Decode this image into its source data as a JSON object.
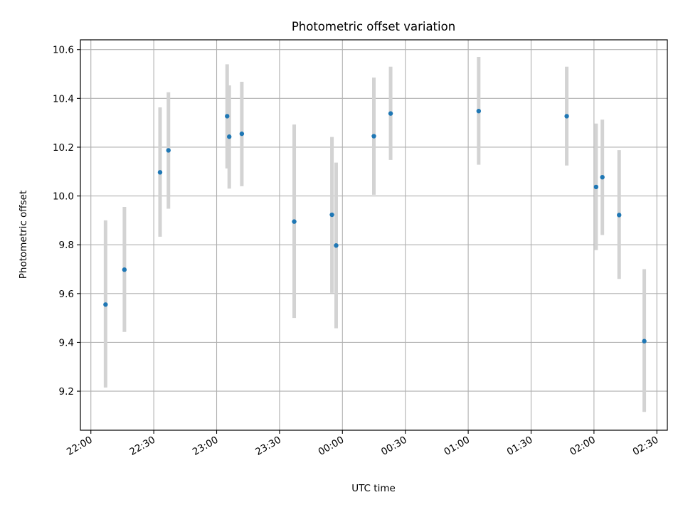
{
  "chart_data": {
    "type": "scatter",
    "title": "Photometric offset variation",
    "xlabel": "UTC time",
    "ylabel": "Photometric offset",
    "grid": true,
    "x_axis": {
      "kind": "time",
      "range": [
        "21:55",
        "02:35"
      ],
      "ticks": [
        "22:00",
        "22:30",
        "23:00",
        "23:30",
        "00:00",
        "00:30",
        "01:00",
        "01:30",
        "02:00",
        "02:30"
      ]
    },
    "y_axis": {
      "range": [
        9.04,
        10.64
      ],
      "ticks": [
        "9.2",
        "9.4",
        "9.6",
        "9.8",
        "10.0",
        "10.2",
        "10.4",
        "10.6"
      ]
    },
    "colors": {
      "point": "#1f77b4",
      "errorbar": "#d3d3d3",
      "grid": "#b0b0b0"
    },
    "series": [
      {
        "points": [
          {
            "x": "22:07",
            "y": 9.555,
            "ylow": 9.215,
            "yhigh": 9.9
          },
          {
            "x": "22:16",
            "y": 9.698,
            "ylow": 9.443,
            "yhigh": 9.955
          },
          {
            "x": "22:33",
            "y": 10.097,
            "ylow": 9.833,
            "yhigh": 10.363
          },
          {
            "x": "22:37",
            "y": 10.187,
            "ylow": 9.948,
            "yhigh": 10.425
          },
          {
            "x": "23:05",
            "y": 10.327,
            "ylow": 10.113,
            "yhigh": 10.54
          },
          {
            "x": "23:06",
            "y": 10.243,
            "ylow": 10.03,
            "yhigh": 10.453
          },
          {
            "x": "23:12",
            "y": 10.255,
            "ylow": 10.04,
            "yhigh": 10.468
          },
          {
            "x": "23:37",
            "y": 9.895,
            "ylow": 9.5,
            "yhigh": 10.293
          },
          {
            "x": "23:55",
            "y": 9.923,
            "ylow": 9.603,
            "yhigh": 10.242
          },
          {
            "x": "23:57",
            "y": 9.797,
            "ylow": 9.458,
            "yhigh": 10.137
          },
          {
            "x": "00:15",
            "y": 10.245,
            "ylow": 10.005,
            "yhigh": 10.485
          },
          {
            "x": "00:23",
            "y": 10.338,
            "ylow": 10.148,
            "yhigh": 10.53
          },
          {
            "x": "01:05",
            "y": 10.348,
            "ylow": 10.128,
            "yhigh": 10.57
          },
          {
            "x": "01:47",
            "y": 10.327,
            "ylow": 10.125,
            "yhigh": 10.53
          },
          {
            "x": "02:01",
            "y": 10.037,
            "ylow": 9.778,
            "yhigh": 10.297
          },
          {
            "x": "02:04",
            "y": 10.077,
            "ylow": 9.84,
            "yhigh": 10.313
          },
          {
            "x": "02:12",
            "y": 9.922,
            "ylow": 9.66,
            "yhigh": 10.188
          },
          {
            "x": "02:24",
            "y": 9.405,
            "ylow": 9.115,
            "yhigh": 9.7
          }
        ]
      }
    ]
  }
}
